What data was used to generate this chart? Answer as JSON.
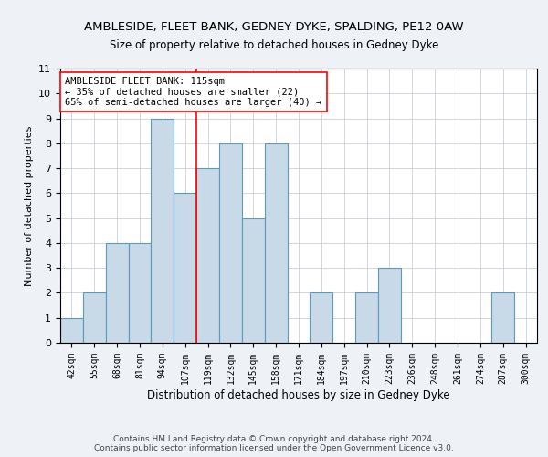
{
  "title1": "AMBLESIDE, FLEET BANK, GEDNEY DYKE, SPALDING, PE12 0AW",
  "title2": "Size of property relative to detached houses in Gedney Dyke",
  "xlabel": "Distribution of detached houses by size in Gedney Dyke",
  "ylabel": "Number of detached properties",
  "categories": [
    "42sqm",
    "55sqm",
    "68sqm",
    "81sqm",
    "94sqm",
    "107sqm",
    "119sqm",
    "132sqm",
    "145sqm",
    "158sqm",
    "171sqm",
    "184sqm",
    "197sqm",
    "210sqm",
    "223sqm",
    "236sqm",
    "248sqm",
    "261sqm",
    "274sqm",
    "287sqm",
    "300sqm"
  ],
  "values": [
    1,
    2,
    4,
    4,
    9,
    6,
    7,
    8,
    5,
    8,
    0,
    2,
    0,
    2,
    3,
    0,
    0,
    0,
    0,
    2,
    0
  ],
  "bar_color": "#c8d9e8",
  "bar_edge_color": "#5a9abf",
  "bar_edge_width": 0.8,
  "red_line_index": 5,
  "annotation_text": "AMBLESIDE FLEET BANK: 115sqm\n← 35% of detached houses are smaller (22)\n65% of semi-detached houses are larger (40) →",
  "annotation_box_color": "white",
  "annotation_box_edge": "red",
  "annotation_fontsize": 7.5,
  "ylim": [
    0,
    11
  ],
  "yticks": [
    0,
    1,
    2,
    3,
    4,
    5,
    6,
    7,
    8,
    9,
    10,
    11
  ],
  "title1_fontsize": 9.5,
  "title2_fontsize": 8.5,
  "xlabel_fontsize": 8.5,
  "ylabel_fontsize": 8,
  "footer_line1": "Contains HM Land Registry data © Crown copyright and database right 2024.",
  "footer_line2": "Contains public sector information licensed under the Open Government Licence v3.0.",
  "footer_fontsize": 6.5,
  "background_color": "#eef2f7",
  "plot_background": "white",
  "grid_color": "#c0c8d0"
}
